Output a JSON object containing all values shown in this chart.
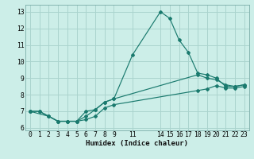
{
  "xlabel": "Humidex (Indice chaleur)",
  "bg_color": "#cceee8",
  "grid_color": "#aad4ce",
  "line_color": "#1a7a6e",
  "lines": [
    {
      "x": [
        0,
        1,
        2,
        3,
        4,
        5,
        6,
        7,
        8,
        9,
        11,
        14,
        15,
        16,
        17,
        18,
        19,
        20,
        21,
        22,
        23
      ],
      "y": [
        7.0,
        7.0,
        6.7,
        6.4,
        6.4,
        6.4,
        6.7,
        7.1,
        7.55,
        7.75,
        10.4,
        13.0,
        12.6,
        11.3,
        10.55,
        9.3,
        9.2,
        9.0,
        8.5,
        8.5,
        8.6
      ]
    },
    {
      "x": [
        0,
        2,
        3,
        4,
        5,
        6,
        7,
        8,
        9,
        18,
        19,
        20,
        21,
        22,
        23
      ],
      "y": [
        7.0,
        6.7,
        6.4,
        6.4,
        6.4,
        7.0,
        7.1,
        7.55,
        7.75,
        9.2,
        9.0,
        8.9,
        8.6,
        8.5,
        8.6
      ]
    },
    {
      "x": [
        0,
        1,
        2,
        3,
        4,
        5,
        6,
        7,
        8,
        9,
        18,
        19,
        20,
        21,
        22,
        23
      ],
      "y": [
        7.0,
        7.0,
        6.7,
        6.4,
        6.4,
        6.4,
        6.5,
        6.7,
        7.2,
        7.4,
        8.25,
        8.35,
        8.55,
        8.4,
        8.4,
        8.5
      ]
    }
  ],
  "xlim": [
    -0.5,
    23.5
  ],
  "ylim": [
    5.85,
    13.42
  ],
  "yticks": [
    6,
    7,
    8,
    9,
    10,
    11,
    12,
    13
  ],
  "xticks": [
    0,
    1,
    2,
    3,
    4,
    5,
    6,
    7,
    8,
    9,
    11,
    14,
    15,
    16,
    17,
    18,
    19,
    20,
    21,
    22,
    23
  ],
  "tick_fontsize": 5.8,
  "label_fontsize": 6.5
}
